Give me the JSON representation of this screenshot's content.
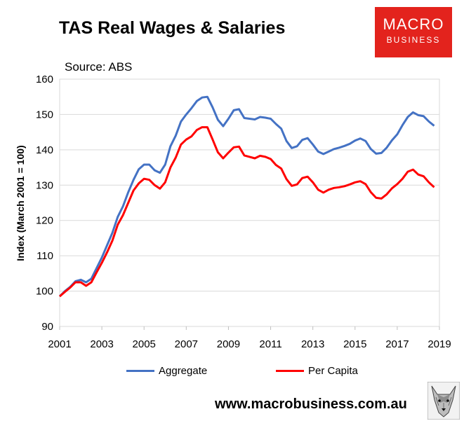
{
  "header": {
    "title": "TAS Real Wages & Salaries",
    "source": "Source: ABS"
  },
  "logo": {
    "line1": "MACRO",
    "line2": "BUSINESS",
    "color": "#e3231d"
  },
  "footer": {
    "website": "www.macrobusiness.com.au",
    "wolf_icon": "wolf-icon"
  },
  "chart_data": {
    "type": "line",
    "title": "TAS Real Wages & Salaries",
    "xlabel": "",
    "ylabel": "Index (March 2001 = 100)",
    "xlim": [
      2001,
      2019
    ],
    "ylim": [
      90,
      160
    ],
    "x_ticks": [
      "2001",
      "2003",
      "2005",
      "2007",
      "2009",
      "2011",
      "2013",
      "2015",
      "2017",
      "2019"
    ],
    "y_ticks": [
      "90",
      "100",
      "110",
      "120",
      "130",
      "140",
      "150",
      "160"
    ],
    "grid": "horizontal",
    "legend_position": "bottom",
    "x": [
      2001.0,
      2001.25,
      2001.5,
      2001.75,
      2002.0,
      2002.25,
      2002.5,
      2002.75,
      2003.0,
      2003.25,
      2003.5,
      2003.75,
      2004.0,
      2004.25,
      2004.5,
      2004.75,
      2005.0,
      2005.25,
      2005.5,
      2005.75,
      2006.0,
      2006.25,
      2006.5,
      2006.75,
      2007.0,
      2007.25,
      2007.5,
      2007.75,
      2008.0,
      2008.25,
      2008.5,
      2008.75,
      2009.0,
      2009.25,
      2009.5,
      2009.75,
      2010.0,
      2010.25,
      2010.5,
      2010.75,
      2011.0,
      2011.25,
      2011.5,
      2011.75,
      2012.0,
      2012.25,
      2012.5,
      2012.75,
      2013.0,
      2013.25,
      2013.5,
      2013.75,
      2014.0,
      2014.25,
      2014.5,
      2014.75,
      2015.0,
      2015.25,
      2015.5,
      2015.75,
      2016.0,
      2016.25,
      2016.5,
      2016.75,
      2017.0,
      2017.25,
      2017.5,
      2017.75,
      2018.0,
      2018.25,
      2018.5,
      2018.75
    ],
    "series": [
      {
        "name": "Aggregate",
        "color": "#4472c4",
        "values": [
          98.5,
          100.0,
          101.2,
          102.8,
          103.2,
          102.5,
          103.5,
          106.5,
          109.5,
          113.0,
          116.5,
          121.0,
          124.0,
          128.0,
          131.5,
          134.5,
          135.8,
          135.8,
          134.2,
          133.5,
          135.8,
          141.0,
          144.0,
          148.0,
          150.0,
          151.8,
          153.8,
          154.8,
          155.0,
          152.0,
          148.5,
          146.7,
          148.8,
          151.2,
          151.5,
          149.0,
          148.8,
          148.6,
          149.3,
          149.1,
          148.8,
          147.3,
          146.0,
          142.5,
          140.5,
          141.0,
          142.8,
          143.3,
          141.5,
          139.5,
          138.8,
          139.5,
          140.2,
          140.6,
          141.1,
          141.7,
          142.6,
          143.2,
          142.5,
          140.2,
          138.9,
          139.1,
          140.6,
          142.7,
          144.4,
          147.0,
          149.3,
          150.6,
          149.8,
          149.5,
          148.0,
          146.8
        ]
      },
      {
        "name": "Per Capita",
        "color": "#ff0000",
        "values": [
          98.5,
          99.8,
          101.0,
          102.5,
          102.5,
          101.5,
          102.5,
          105.3,
          108.0,
          111.0,
          114.3,
          118.8,
          121.5,
          125.0,
          128.5,
          130.5,
          131.8,
          131.5,
          130.0,
          129.0,
          130.8,
          135.0,
          137.8,
          141.5,
          142.9,
          143.8,
          145.6,
          146.4,
          146.4,
          142.9,
          139.3,
          137.6,
          139.2,
          140.7,
          140.9,
          138.4,
          138.0,
          137.6,
          138.3,
          138.0,
          137.4,
          135.7,
          134.7,
          131.7,
          129.8,
          130.2,
          132.0,
          132.4,
          130.8,
          128.7,
          127.9,
          128.7,
          129.2,
          129.4,
          129.7,
          130.2,
          130.8,
          131.1,
          130.3,
          128.0,
          126.4,
          126.2,
          127.4,
          129.1,
          130.3,
          131.8,
          133.8,
          134.4,
          133.0,
          132.5,
          130.8,
          129.4
        ]
      }
    ]
  }
}
